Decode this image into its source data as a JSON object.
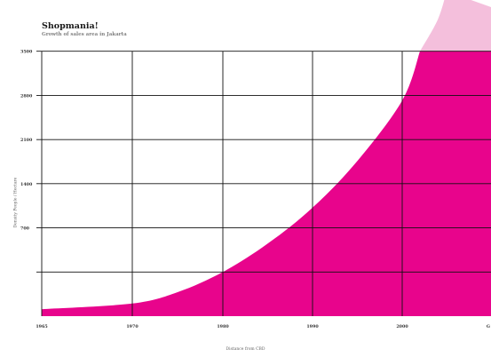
{
  "title": "Shopmania!",
  "subtitle": "Growth of sales area in Jakarta",
  "colors": {
    "fill_actual": "#e8048c",
    "fill_projected": "#f4bfdc",
    "grid": "#111111",
    "tick_text": "#333333"
  },
  "chart_data": {
    "type": "area",
    "title": "Shopmania!",
    "subtitle": "Growth of sales area in Jakarta",
    "xlabel": "Distance from CBD",
    "ylabel": "Density People / Hectare",
    "x_ticks": [
      "1965",
      "1970",
      "1980",
      "1990",
      "2000",
      "G"
    ],
    "y_ticks": [
      700,
      1400,
      2100,
      2800,
      3500
    ],
    "ylim": [
      -700,
      4200
    ],
    "grid": true,
    "legend": "none",
    "series": [
      {
        "role": "actual",
        "points": [
          {
            "x": 1965,
            "y": -590
          },
          {
            "x": 1970,
            "y": -500
          },
          {
            "x": 1975,
            "y": -320
          },
          {
            "x": 1980,
            "y": 0
          },
          {
            "x": 1985,
            "y": 450
          },
          {
            "x": 1990,
            "y": 1020
          },
          {
            "x": 1995,
            "y": 1760
          },
          {
            "x": 2000,
            "y": 2720
          },
          {
            "x": 2002,
            "y": 3500
          },
          {
            "x": 2010,
            "y": 3500
          }
        ]
      },
      {
        "role": "projected",
        "points": [
          {
            "x": 2002,
            "y": 3500
          },
          {
            "x": 2004,
            "y": 4000
          },
          {
            "x": 2005,
            "y": 4450
          },
          {
            "x": 2010,
            "y": 4450
          }
        ]
      }
    ]
  }
}
